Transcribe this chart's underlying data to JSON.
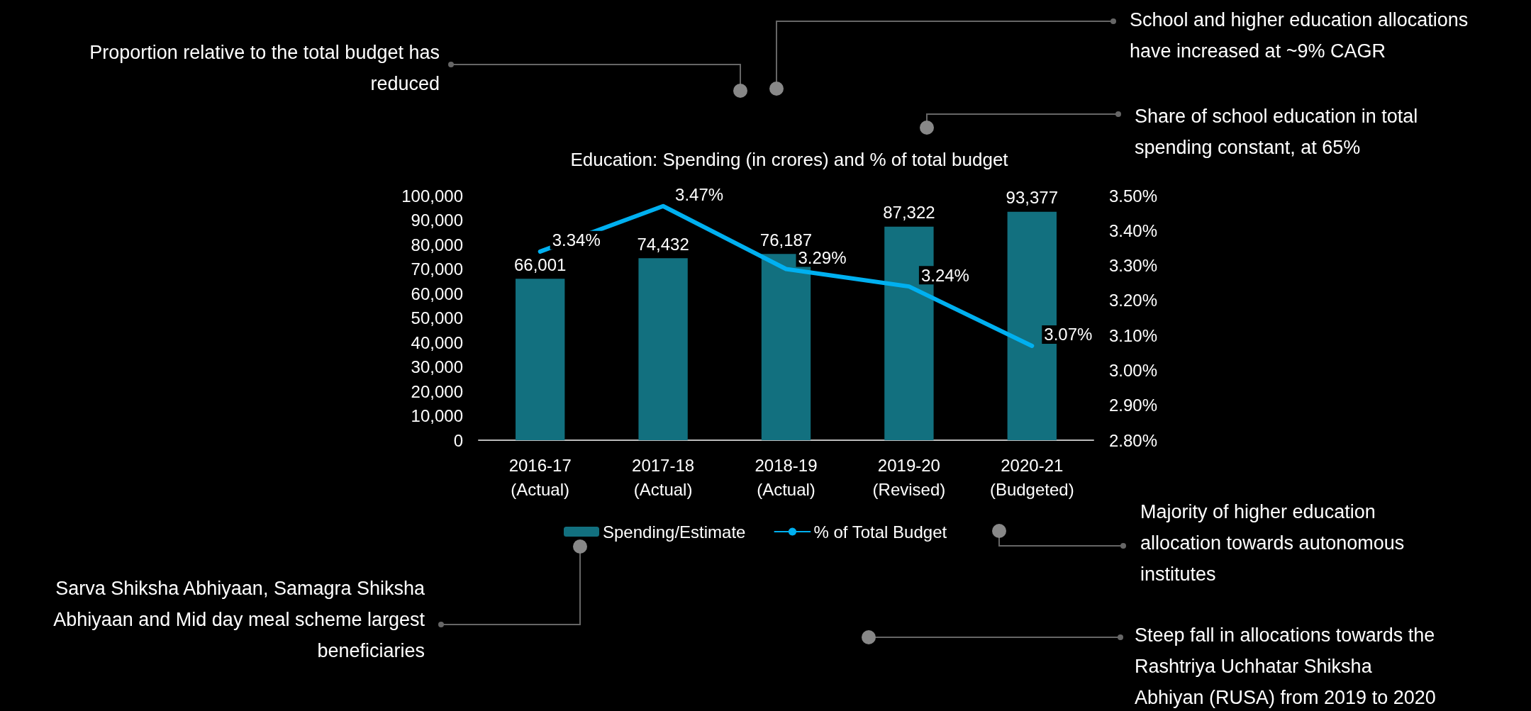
{
  "chart_data": {
    "type": "bar",
    "title": "Education: Spending (in crores) and % of total budget",
    "categories": [
      "2016-17\n(Actual)",
      "2017-18\n(Actual)",
      "2018-19\n(Actual)",
      "2019-20\n(Revised)",
      "2020-21\n(Budgeted)"
    ],
    "series": [
      {
        "name": "Spending/Estimate",
        "color": "#12707f",
        "values": [
          66001,
          74432,
          76187,
          87322,
          93377
        ],
        "value_labels": [
          "66,001",
          "74,432",
          "76,187",
          "87,322",
          "93,377"
        ]
      },
      {
        "name": "% of Total Budget",
        "type": "line",
        "axis": "y2",
        "color": "#00b0f0",
        "values": [
          3.34,
          3.47,
          3.29,
          3.24,
          3.07
        ],
        "value_labels": [
          "3.34%",
          "3.47%",
          "3.29%",
          "3.24%",
          "3.07%"
        ]
      }
    ],
    "ylim": [
      0,
      100000
    ],
    "yticks": [
      0,
      {
        "value": 10000,
        "label": "10,000"
      },
      {
        "value": 20000,
        "label": "20,000"
      },
      {
        "value": 30000,
        "label": "30,000"
      },
      {
        "value": 40000,
        "label": "40,000"
      },
      {
        "value": 50000,
        "label": "50,000"
      },
      {
        "value": 60000,
        "label": "60,000"
      },
      {
        "value": 70000,
        "label": "70,000"
      },
      {
        "value": 80000,
        "label": "80,000"
      },
      {
        "value": 90000,
        "label": "90,000"
      },
      {
        "value": 100000,
        "label": "100,000"
      }
    ],
    "y2lim": [
      2.8,
      3.5
    ],
    "y2ticks": [
      {
        "value": 2.8,
        "label": "2.80%"
      },
      {
        "value": 2.9,
        "label": "2.90%"
      },
      {
        "value": 3.0,
        "label": "3.00%"
      },
      {
        "value": 3.1,
        "label": "3.10%"
      },
      {
        "value": 3.2,
        "label": "3.20%"
      },
      {
        "value": 3.3,
        "label": "3.30%"
      },
      {
        "value": 3.4,
        "label": "3.40%"
      },
      {
        "value": 3.5,
        "label": "3.50%"
      }
    ],
    "grid": false,
    "legend": "bottom",
    "marker": "none",
    "line_style": "solid",
    "annotations": [
      "Proportion relative to the total budget has\nreduced",
      "School and higher education allocations\nhave increased at ~9% CAGR",
      "Share of school education in total\nspending constant, at 65%",
      "Majority of higher education\nallocation towards autonomous\ninstitutes",
      "Sarva Shiksha Abhiyaan, Samagra Shiksha\nAbhiyaan and Mid day meal scheme largest\nbeneficiaries",
      "Steep fall in allocations towards the\nRashtriya Uchhatar Shiksha\nAbhiyan (RUSA) from 2019 to 2020"
    ]
  }
}
